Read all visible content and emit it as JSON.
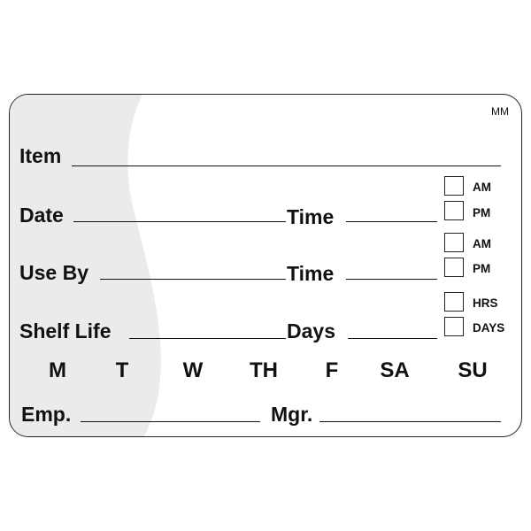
{
  "label": {
    "code": "MM",
    "fields": {
      "item": "Item",
      "date": "Date",
      "time1": "Time",
      "use_by": "Use By",
      "time2": "Time",
      "shelf_life": "Shelf Life",
      "days": "Days",
      "emp": "Emp.",
      "mgr": "Mgr."
    },
    "checkboxes": [
      {
        "label": "AM",
        "checked": false
      },
      {
        "label": "PM",
        "checked": false
      },
      {
        "label": "AM",
        "checked": false
      },
      {
        "label": "PM",
        "checked": false
      },
      {
        "label": "HRS",
        "checked": false
      },
      {
        "label": "DAYS",
        "checked": false
      }
    ],
    "weekdays": [
      "M",
      "T",
      "W",
      "TH",
      "F",
      "SA",
      "SU"
    ],
    "colors": {
      "band": "#ebebeb",
      "ink": "#111111"
    }
  }
}
